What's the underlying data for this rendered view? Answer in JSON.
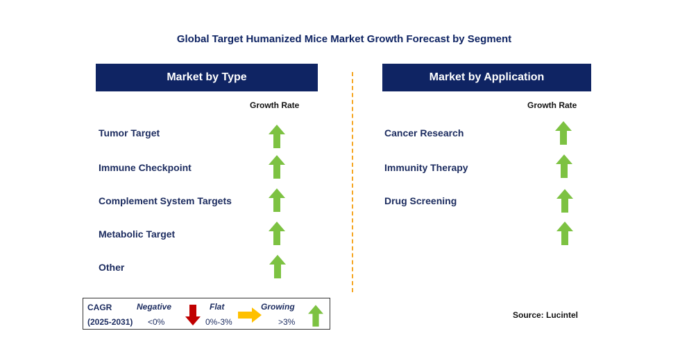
{
  "title": "Global Target Humanized Mice Market Growth Forecast by Segment",
  "left_panel": {
    "header": "Market by Type",
    "growth_label": "Growth Rate",
    "items": [
      {
        "label": "Tumor Target",
        "trend": "growing"
      },
      {
        "label": "Immune Checkpoint",
        "trend": "growing"
      },
      {
        "label": "Complement System Targets",
        "trend": "growing"
      },
      {
        "label": "Metabolic Target",
        "trend": "growing"
      },
      {
        "label": "Other",
        "trend": "growing"
      }
    ]
  },
  "right_panel": {
    "header": "Market by Application",
    "growth_label": "Growth Rate",
    "items": [
      {
        "label": "Cancer Research",
        "trend": "growing"
      },
      {
        "label": "Immunity Therapy",
        "trend": "growing"
      },
      {
        "label": "Drug Screening",
        "trend": "growing"
      },
      {
        "label": "",
        "trend": "growing"
      }
    ]
  },
  "legend": {
    "cagr": "CAGR",
    "period": "(2025-2031)",
    "negative": {
      "label": "Negative",
      "value": "<0%"
    },
    "flat": {
      "label": "Flat",
      "value": "0%-3%"
    },
    "growing": {
      "label": "Growing",
      "value": ">3%"
    }
  },
  "source": "Source: Lucintel",
  "colors": {
    "header_bg": "#0f2463",
    "growing_arrow": "#7dc242",
    "negative_arrow": "#c00000",
    "flat_arrow": "#ffc000",
    "divider": "#f5a623"
  },
  "icons": {
    "growing": "arrow-up-icon",
    "negative": "arrow-down-icon",
    "flat": "arrow-right-icon"
  }
}
